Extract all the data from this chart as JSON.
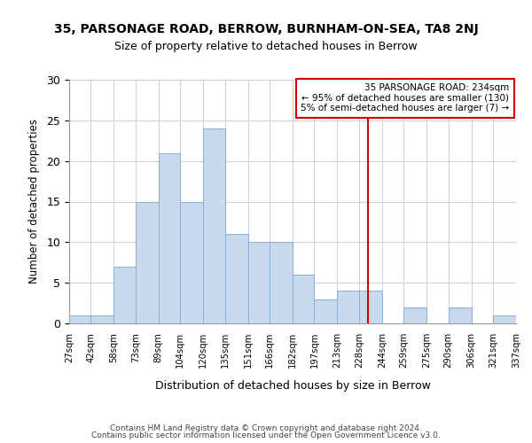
{
  "title": "35, PARSONAGE ROAD, BERROW, BURNHAM-ON-SEA, TA8 2NJ",
  "subtitle": "Size of property relative to detached houses in Berrow",
  "xlabel": "Distribution of detached houses by size in Berrow",
  "ylabel": "Number of detached properties",
  "bin_edges": [
    27,
    42,
    58,
    73,
    89,
    104,
    120,
    135,
    151,
    166,
    182,
    197,
    213,
    228,
    244,
    259,
    275,
    290,
    306,
    321,
    337
  ],
  "bin_labels": [
    "27sqm",
    "42sqm",
    "58sqm",
    "73sqm",
    "89sqm",
    "104sqm",
    "120sqm",
    "135sqm",
    "151sqm",
    "166sqm",
    "182sqm",
    "197sqm",
    "213sqm",
    "228sqm",
    "244sqm",
    "259sqm",
    "275sqm",
    "290sqm",
    "306sqm",
    "321sqm",
    "337sqm"
  ],
  "counts": [
    1,
    1,
    7,
    15,
    21,
    15,
    24,
    11,
    10,
    10,
    6,
    3,
    4,
    4,
    0,
    2,
    0,
    2,
    0,
    1
  ],
  "bar_color": "#c8d9ee",
  "bar_edge_color": "#8aaed4",
  "vline_x": 234,
  "vline_color": "#cc0000",
  "annotation_title": "35 PARSONAGE ROAD: 234sqm",
  "annotation_line1": "← 95% of detached houses are smaller (130)",
  "annotation_line2": "5% of semi-detached houses are larger (7) →",
  "annotation_box_edge": "#cc0000",
  "ylim": [
    0,
    30
  ],
  "yticks": [
    0,
    5,
    10,
    15,
    20,
    25,
    30
  ],
  "grid_color": "#d0d0e0",
  "footer1": "Contains HM Land Registry data © Crown copyright and database right 2024.",
  "footer2": "Contains public sector information licensed under the Open Government Licence v3.0."
}
